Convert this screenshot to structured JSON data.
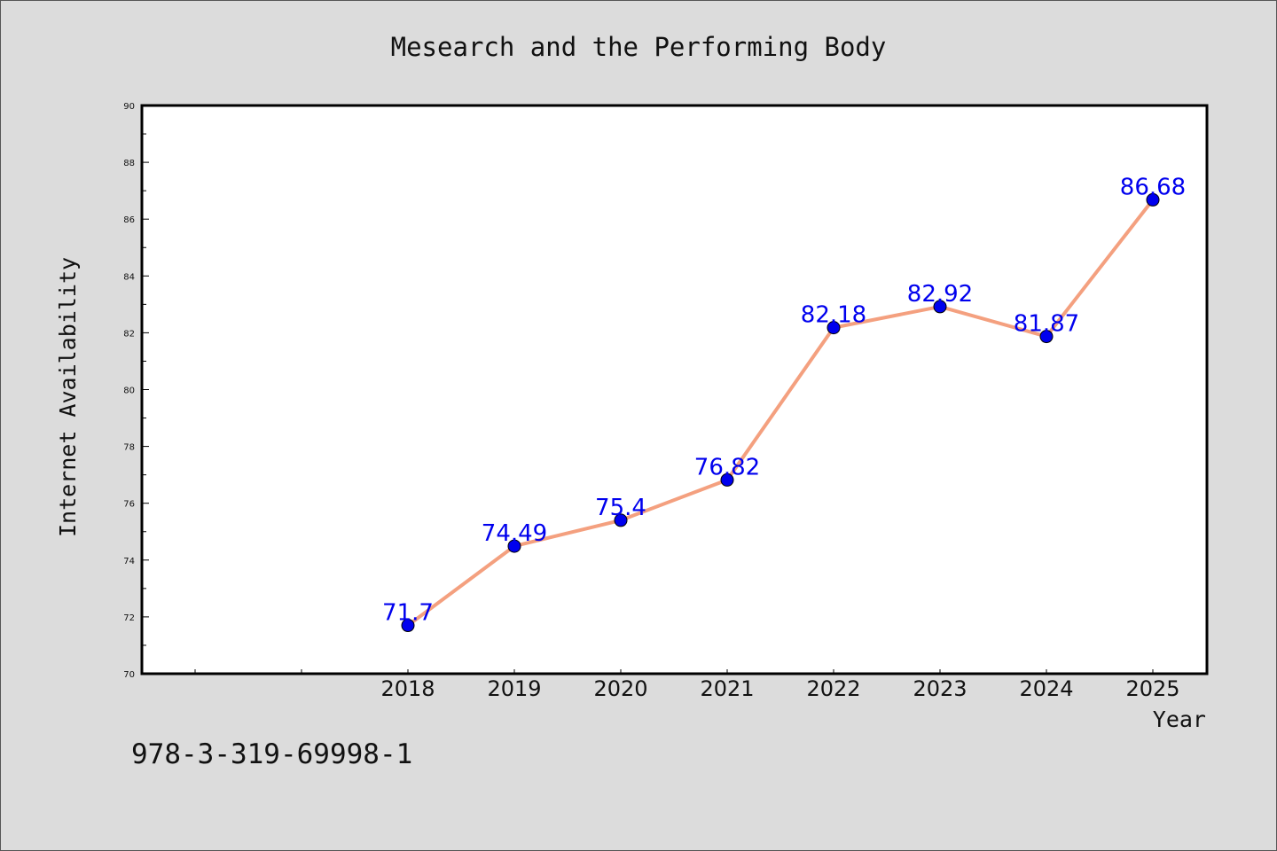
{
  "chart_data": {
    "type": "line",
    "title": "Mesearch and the Performing Body",
    "xlabel": "Year",
    "ylabel": "Internet Availability",
    "categories": [
      "2018",
      "2019",
      "2020",
      "2021",
      "2022",
      "2023",
      "2024",
      "2025"
    ],
    "series": [
      {
        "values": [
          71.7,
          74.49,
          75.4,
          76.82,
          82.18,
          82.92,
          81.87,
          86.68
        ],
        "labels": [
          "71.7",
          "74.49",
          "75.4",
          "76.82",
          "82.18",
          "82.92",
          "81.87",
          "86.68"
        ]
      }
    ],
    "ylim": [
      70,
      90
    ],
    "yticks": [
      "70",
      "72",
      "74",
      "76",
      "78",
      "80",
      "82",
      "84",
      "86",
      "88",
      "90"
    ],
    "grid": false,
    "legend": false,
    "line_color": "#f4a07f",
    "marker_color": "#0000ee",
    "label_color": "#0000ee"
  },
  "footer": {
    "isbn": "978-3-319-69998-1"
  }
}
